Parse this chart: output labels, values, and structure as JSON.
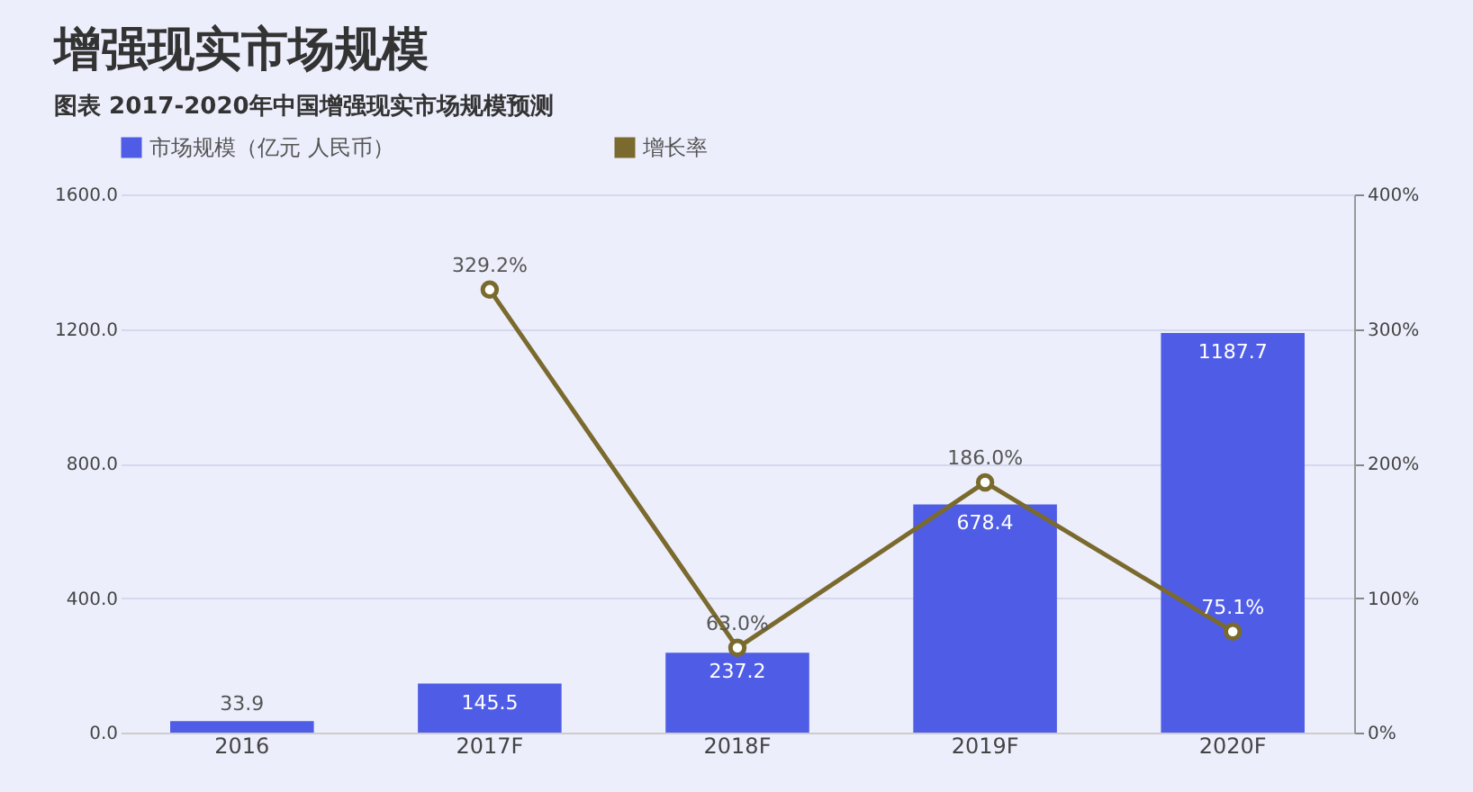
{
  "chart_data": {
    "type": "bar",
    "title": "增强现实市场规模",
    "subtitle": "图表  2017-2020年中国增强现实市场规模预测",
    "categories": [
      "2016",
      "2017F",
      "2018F",
      "2019F",
      "2020F"
    ],
    "series": [
      {
        "name": "市场规模（亿元 人民币）",
        "type": "bar",
        "color": "#4f5de6",
        "values": [
          33.9,
          145.5,
          237.2,
          678.4,
          1187.7
        ],
        "value_labels": [
          "33.9",
          "145.5",
          "237.2",
          "678.4",
          "1187.7"
        ]
      },
      {
        "name": "增长率",
        "type": "line",
        "axis": "y2",
        "color": "#7a6a2e",
        "marker": "circle",
        "values": [
          null,
          329.2,
          63.0,
          186.0,
          75.1
        ],
        "value_labels": [
          null,
          "329.2%",
          "63.0%",
          "186.0%",
          "75.1%"
        ]
      }
    ],
    "ylim": [
      0,
      1600
    ],
    "yticks": [
      {
        "value": 0,
        "label": "0.0"
      },
      {
        "value": 400,
        "label": "400.0"
      },
      {
        "value": 800,
        "label": "800.0"
      },
      {
        "value": 1200,
        "label": "1200.0"
      },
      {
        "value": 1600,
        "label": "1600.0"
      }
    ],
    "y2lim": [
      0,
      400
    ],
    "y2ticks": [
      {
        "value": 0,
        "label": "0%"
      },
      {
        "value": 100,
        "label": "100%"
      },
      {
        "value": 200,
        "label": "200%"
      },
      {
        "value": 300,
        "label": "300%"
      },
      {
        "value": 400,
        "label": "400%"
      }
    ],
    "grid": "y",
    "legend": "top"
  }
}
